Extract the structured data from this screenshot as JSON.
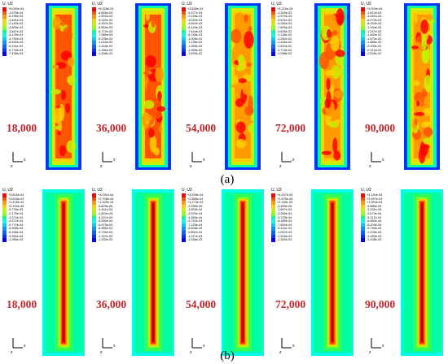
{
  "captions": {
    "a": "(a)",
    "b": "(b)"
  },
  "legend_title": "U, U2",
  "colors": {
    "scale": [
      "#0000ff",
      "#0033ff",
      "#0066ff",
      "#0099ff",
      "#00ccff",
      "#00ffe6",
      "#00ffa3",
      "#33ff55",
      "#8cff1a",
      "#c8f000",
      "#ffd000",
      "#ff9a00",
      "#ff5500",
      "#ff0000"
    ],
    "step_label": "#c0262b"
  },
  "axis_labels": {
    "x": "x",
    "z": "z"
  },
  "panel_a": [
    {
      "step": "18,000",
      "legend": [
        "+5.040e-04",
        "-1.578e-04",
        "-8.196e-04",
        "-1.481e-03",
        "-2.143e-03",
        "-2.805e-03",
        "-3.467e-03",
        "-4.129e-03",
        "-4.790e-03",
        "-5.452e-03",
        "-6.114e-03",
        "-6.776e-03",
        "-7.438e-03"
      ]
    },
    {
      "step": "36,000",
      "legend": [
        "+5.328e-04",
        "-6.846e-04",
        "-1.902e-03",
        "-3.119e-03",
        "-4.337e-03",
        "-5.554e-03",
        "-6.772e-03",
        "-7.989e-03",
        "-9.206e-03",
        "-1.042e-02",
        "-1.164e-02",
        "-1.286e-02",
        "-1.408e-02"
      ]
    },
    {
      "step": "54,000",
      "legend": [
        "+3.638e-04",
        "-9.377e-04",
        "-2.239e-03",
        "-3.540e-03",
        "-4.842e-03",
        "-6.143e-03",
        "-7.444e-03",
        "-8.746e-03",
        "-1.005e-02",
        "-1.135e-02",
        "-1.265e-02",
        "-1.395e-02",
        "-1.525e-02"
      ]
    },
    {
      "step": "72,000",
      "legend": [
        "+3.124e-04",
        "-1.329e-03",
        "-2.970e-03",
        "-4.611e-03",
        "-6.252e-03",
        "-7.893e-03",
        "-9.535e-03",
        "-1.118e-02",
        "-1.282e-02",
        "-1.446e-02",
        "-1.610e-02",
        "-1.774e-02",
        "-1.938e-02"
      ]
    },
    {
      "step": "90,000",
      "legend": [
        "+3.209e-04",
        "-1.810e-03",
        "-3.941e-03",
        "-6.073e-03",
        "-8.204e-03",
        "-1.034e-02",
        "-1.247e-02",
        "-1.460e-02",
        "-1.673e-02",
        "-1.886e-02",
        "-2.099e-02",
        "-2.312e-02",
        "-2.526e-02"
      ]
    }
  ],
  "panel_b": [
    {
      "step": "18,000",
      "legend": [
        "+3.815e-04",
        "+2.616e-04",
        "+1.418e-04",
        "+2.193e-05",
        "-9.778e-05",
        "-2.175e-04",
        "-3.374e-04",
        "-4.572e-04",
        "-5.770e-04",
        "-6.968e-04",
        "-8.166e-04",
        "-9.365e-04",
        "-1.056e-03"
      ]
    },
    {
      "step": "36,000",
      "legend": [
        "+4.091e-04",
        "+2.708e-04",
        "+1.325e-04",
        "-5.829e-06",
        "-1.441e-04",
        "-2.824e-04",
        "-4.207e-04",
        "-5.590e-04",
        "-6.973e-04",
        "-8.356e-04",
        "-9.739e-04",
        "-1.112e-03",
        "-1.250e-03"
      ]
    },
    {
      "step": "54,000",
      "legend": [
        "+3.939e-04",
        "+2.556e-04",
        "+1.173e-04",
        "-2.099e-05",
        "-1.593e-04",
        "-2.976e-04",
        "-4.359e-04",
        "-5.742e-04",
        "-7.125e-04",
        "-8.508e-04",
        "-9.891e-04",
        "-1.127e-03",
        "-1.266e-03"
      ]
    },
    {
      "step": "72,000",
      "legend": [
        "+4.037e-04",
        "+2.576e-04",
        "+1.115e-04",
        "-3.459e-05",
        "-1.807e-04",
        "-3.268e-04",
        "-4.729e-04",
        "-6.189e-04",
        "-7.650e-04",
        "-9.111e-04",
        "-1.057e-03",
        "-1.203e-03",
        "-1.349e-03"
      ]
    },
    {
      "step": "90,000",
      "legend": [
        "+4.140e-04",
        "+2.597e-04",
        "+1.054e-04",
        "-4.885e-05",
        "-2.031e-04",
        "-3.574e-04",
        "-5.117e-04",
        "-6.660e-04",
        "-8.203e-04",
        "-9.746e-04",
        "-1.129e-03",
        "-1.283e-03",
        "-1.438e-03"
      ]
    }
  ]
}
